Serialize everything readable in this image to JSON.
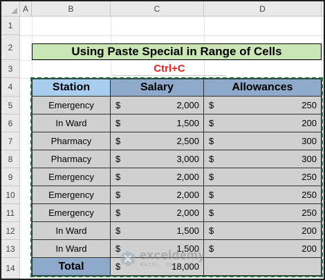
{
  "sheet": {
    "columns": [
      "A",
      "B",
      "C",
      "D"
    ],
    "rows": [
      "1",
      "2",
      "3",
      "4",
      "5",
      "6",
      "7",
      "8",
      "9",
      "10",
      "11",
      "12",
      "13",
      "14"
    ]
  },
  "title": "Using Paste Special in Range of Cells",
  "subtitle": "Ctrl+C",
  "table": {
    "headers": [
      "Station",
      "Salary",
      "Allowances"
    ],
    "currency_symbol": "$",
    "rows": [
      {
        "station": "Emergency",
        "salary": "2,000",
        "allowances": "250"
      },
      {
        "station": "In Ward",
        "salary": "1,500",
        "allowances": "200"
      },
      {
        "station": "Pharmacy",
        "salary": "2,500",
        "allowances": "300"
      },
      {
        "station": "Pharmacy",
        "salary": "3,000",
        "allowances": "300"
      },
      {
        "station": "Emergency",
        "salary": "2,000",
        "allowances": "250"
      },
      {
        "station": "Emergency",
        "salary": "2,000",
        "allowances": "250"
      },
      {
        "station": "Emergency",
        "salary": "2,000",
        "allowances": "250"
      },
      {
        "station": "In Ward",
        "salary": "1,500",
        "allowances": "200"
      },
      {
        "station": "In Ward",
        "salary": "1,500",
        "allowances": "200"
      }
    ],
    "total": {
      "label": "Total",
      "salary": "18,000"
    }
  },
  "watermark": {
    "name": "exceldemy",
    "tagline": "EXCEL · DATA · BI"
  },
  "colors": {
    "title_fill": "#c9e6b4",
    "station_header_fill": "#a9cdef",
    "header_fill": "#8ea9c9",
    "body_fill": "#d0d0d0",
    "subtitle_text": "#e02020",
    "selection_border": "#217346"
  }
}
